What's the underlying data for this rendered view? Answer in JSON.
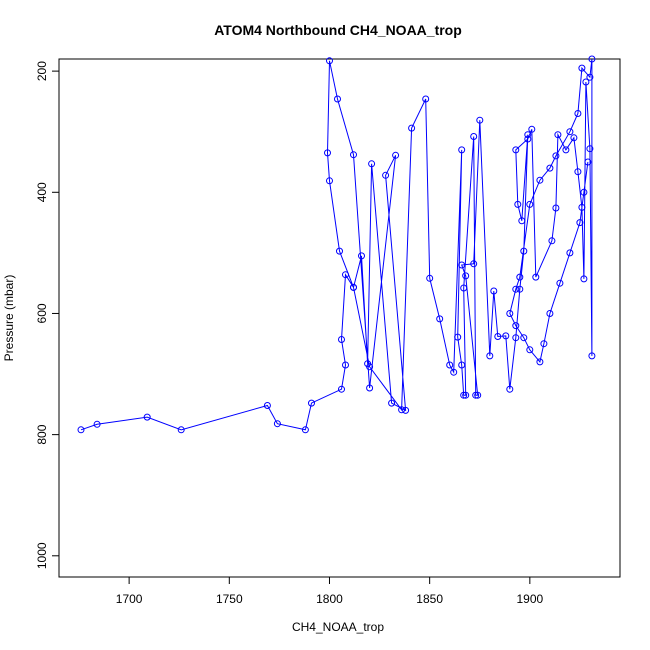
{
  "chart_data": {
    "type": "line",
    "title": "ATOM4 Northbound CH4_NOAA_trop",
    "xlabel": "CH4_NOAA_trop",
    "ylabel": "Pressure (mbar)",
    "xlim": [
      1665,
      1945
    ],
    "ylim": [
      1035,
      180
    ],
    "y_reversed": true,
    "grid": false,
    "legend": "none",
    "x_ticks": [
      1700,
      1750,
      1800,
      1850,
      1900
    ],
    "y_ticks": [
      200,
      400,
      600,
      800,
      1000
    ],
    "x_tick_labels": [
      "1700",
      "1750",
      "1800",
      "1850",
      "1900"
    ],
    "y_tick_labels": [
      "200",
      "400",
      "600",
      "800",
      "1000"
    ],
    "series": [
      {
        "color": "#0000ff",
        "marker": "open-circle",
        "x": [
          1676,
          1684,
          1709,
          1726,
          1769,
          1774,
          1788,
          1791,
          1806,
          1808,
          1806,
          1808,
          1812,
          1816,
          1819,
          1821,
          1831,
          1838,
          1828,
          1833,
          1820,
          1812,
          1804,
          1800,
          1799,
          1800,
          1805,
          1812,
          1820,
          1836,
          1841,
          1848,
          1850,
          1855,
          1860,
          1862,
          1866,
          1864,
          1866,
          1867,
          1868,
          1867,
          1872,
          1873,
          1874,
          1868,
          1866,
          1872,
          1875,
          1880,
          1882,
          1884,
          1888,
          1890,
          1893,
          1895,
          1897,
          1899,
          1896,
          1894,
          1893,
          1899,
          1901,
          1903,
          1911,
          1913,
          1914,
          1918,
          1922,
          1924,
          1926,
          1927,
          1928,
          1930,
          1931,
          1931,
          1930,
          1926,
          1924,
          1920,
          1913,
          1910,
          1905,
          1900,
          1895,
          1893,
          1890,
          1893,
          1897,
          1900,
          1905,
          1907,
          1910,
          1915,
          1920,
          1925,
          1927,
          1929
        ],
        "y": [
          792,
          783,
          771,
          792,
          752,
          782,
          792,
          748,
          725,
          685,
          643,
          536,
          557,
          505,
          683,
          353,
          748,
          760,
          372,
          339,
          723,
          338,
          246,
          183,
          335,
          381,
          497,
          557,
          688,
          759,
          294,
          246,
          542,
          609,
          685,
          697,
          330,
          639,
          685,
          735,
          735,
          558,
          308,
          735,
          735,
          538,
          520,
          518,
          281,
          670,
          563,
          638,
          637,
          725,
          640,
          560,
          497,
          305,
          447,
          420,
          330,
          312,
          296,
          540,
          480,
          426,
          305,
          330,
          310,
          366,
          425,
          543,
          218,
          328,
          670,
          180,
          210,
          195,
          270,
          300,
          340,
          360,
          380,
          420,
          540,
          560,
          600,
          620,
          640,
          660,
          680,
          650,
          600,
          550,
          500,
          450,
          400,
          350
        ]
      }
    ]
  }
}
